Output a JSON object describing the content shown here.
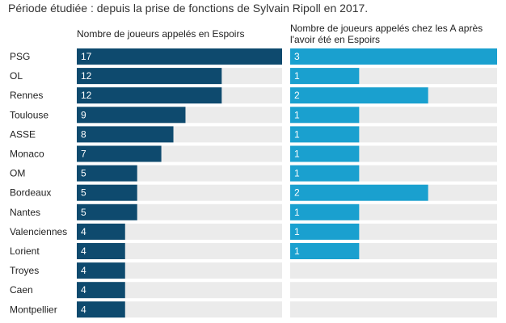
{
  "subtitle": "Période étudiée : depuis la prise de fonctions de Sylvain Ripoll en 2017.",
  "colors": {
    "primary": "#0e4a6e",
    "secondary": "#1aa0cf",
    "track": "#ebebeb"
  },
  "chart_data": {
    "type": "bar",
    "orientation": "horizontal",
    "categories": [
      "PSG",
      "OL",
      "Rennes",
      "Toulouse",
      "ASSE",
      "Monaco",
      "OM",
      "Bordeaux",
      "Nantes",
      "Valenciennes",
      "Lorient",
      "Troyes",
      "Caen",
      "Montpellier"
    ],
    "series": [
      {
        "name": "Nombre de joueurs appelés en Espoirs",
        "values": [
          17,
          12,
          12,
          9,
          8,
          7,
          5,
          5,
          5,
          4,
          4,
          4,
          4,
          4
        ],
        "max": 17
      },
      {
        "name": "Nombre de joueurs appelés chez les A après l'avoir été en Espoirs",
        "values": [
          3,
          1,
          2,
          1,
          1,
          1,
          1,
          2,
          1,
          1,
          1,
          null,
          null,
          null
        ],
        "max": 3
      }
    ]
  }
}
